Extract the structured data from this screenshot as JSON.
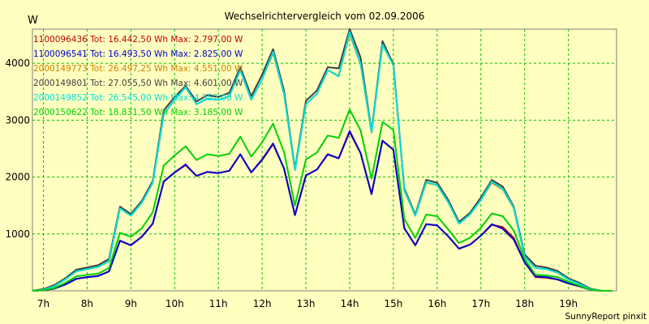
{
  "chart_data": {
    "type": "line",
    "title": "Wechselrichtervergleich vom 02.09.2006",
    "ylabel": "W",
    "xlabel": "",
    "credit": "SunnyReport pinxit",
    "ylim": [
      0,
      4600
    ],
    "xlim": [
      6.75,
      20.1
    ],
    "grid": true,
    "legend_position": "top-left",
    "y_ticks": [
      1000,
      2000,
      3000,
      4000
    ],
    "y_tick_labels": [
      "1000",
      "2000",
      "3000",
      "4000"
    ],
    "x_ticks": [
      7,
      8,
      9,
      10,
      11,
      12,
      13,
      14,
      15,
      16,
      17,
      18,
      19
    ],
    "x_tick_labels": [
      "7h",
      "8h",
      "9h",
      "10h",
      "11h",
      "12h",
      "13h",
      "14h",
      "15h",
      "16h",
      "17h",
      "18h",
      "19h"
    ],
    "x": [
      6.75,
      7.0,
      7.25,
      7.5,
      7.75,
      8.0,
      8.25,
      8.5,
      8.75,
      9.0,
      9.25,
      9.5,
      9.75,
      10.0,
      10.25,
      10.5,
      10.75,
      11.0,
      11.25,
      11.5,
      11.75,
      12.0,
      12.25,
      12.5,
      12.75,
      13.0,
      13.25,
      13.5,
      13.75,
      14.0,
      14.25,
      14.5,
      14.75,
      15.0,
      15.25,
      15.5,
      15.75,
      16.0,
      16.25,
      16.5,
      16.75,
      17.0,
      17.25,
      17.5,
      17.75,
      18.0,
      18.25,
      18.5,
      18.75,
      19.0,
      19.25,
      19.5,
      19.75,
      20.0
    ],
    "series": [
      {
        "name": "1100096436",
        "legend": "1100096436 Tot: 16.442,50 Wh Max: 2.797,00 W",
        "color": "#c00000",
        "values": [
          0,
          10,
          40,
          110,
          210,
          240,
          260,
          340,
          880,
          800,
          950,
          1180,
          1920,
          2080,
          2210,
          2020,
          2090,
          2070,
          2110,
          2400,
          2080,
          2300,
          2580,
          2150,
          1330,
          2030,
          2130,
          2400,
          2330,
          2790,
          2420,
          1700,
          2640,
          2480,
          1100,
          800,
          1170,
          1150,
          960,
          740,
          810,
          970,
          1160,
          1120,
          930,
          500,
          240,
          230,
          200,
          130,
          80,
          20,
          0,
          0
        ]
      },
      {
        "name": "1100096541",
        "legend": "1100096541 Tot: 16.493,50 Wh Max: 2.825,00 W",
        "color": "#0000d0",
        "values": [
          0,
          10,
          40,
          110,
          210,
          240,
          260,
          340,
          880,
          800,
          950,
          1180,
          1920,
          2080,
          2220,
          2020,
          2090,
          2070,
          2110,
          2400,
          2080,
          2310,
          2590,
          2150,
          1330,
          2030,
          2130,
          2400,
          2330,
          2810,
          2420,
          1700,
          2640,
          2480,
          1100,
          800,
          1170,
          1150,
          960,
          740,
          810,
          970,
          1170,
          1090,
          900,
          500,
          250,
          240,
          200,
          130,
          80,
          20,
          0,
          0
        ]
      },
      {
        "name": "2000149773",
        "legend": "2000149773 Tot: 26.497,25 Wh Max: 4.551,00 W",
        "color": "#d08000",
        "values": [
          0,
          20,
          80,
          200,
          340,
          380,
          420,
          520,
          1450,
          1320,
          1550,
          1900,
          3100,
          3360,
          3580,
          3280,
          3380,
          3360,
          3420,
          3880,
          3360,
          3720,
          4180,
          3460,
          2120,
          3280,
          3460,
          3880,
          3780,
          4520,
          3980,
          2780,
          4320,
          4000,
          1760,
          1320,
          1900,
          1860,
          1560,
          1180,
          1340,
          1600,
          1900,
          1780,
          1450,
          600,
          400,
          380,
          320,
          200,
          120,
          30,
          0,
          0
        ]
      },
      {
        "name": "2000149801",
        "legend": "2000149801 Tot: 27.055,50 Wh Max: 4.601,00 W",
        "color": "#404040",
        "values": [
          0,
          30,
          100,
          220,
          370,
          410,
          450,
          560,
          1480,
          1350,
          1580,
          1930,
          3170,
          3410,
          3600,
          3330,
          3440,
          3410,
          3480,
          3930,
          3420,
          3800,
          4250,
          3520,
          2140,
          3340,
          3520,
          3930,
          3910,
          4601,
          4100,
          2810,
          4390,
          3980,
          1800,
          1340,
          1950,
          1900,
          1600,
          1210,
          1370,
          1640,
          1950,
          1830,
          1480,
          640,
          440,
          410,
          350,
          220,
          140,
          40,
          0,
          0
        ]
      },
      {
        "name": "2000149852",
        "legend": "2000149852 Tot: 26.545,00 Wh Max: 4.552,00 W",
        "color": "#00e0e0",
        "values": [
          0,
          20,
          80,
          200,
          340,
          380,
          420,
          520,
          1450,
          1320,
          1550,
          1900,
          3100,
          3360,
          3580,
          3280,
          3380,
          3360,
          3420,
          3880,
          3360,
          3720,
          4200,
          3460,
          2120,
          3280,
          3460,
          3880,
          3770,
          4550,
          3990,
          2790,
          4330,
          3960,
          1770,
          1320,
          1910,
          1860,
          1560,
          1180,
          1340,
          1600,
          1920,
          1790,
          1460,
          600,
          400,
          380,
          320,
          200,
          120,
          30,
          0,
          0
        ]
      },
      {
        "name": "2000150622",
        "legend": "2000150622 Tot: 18.831,50 Wh Max: 3.185,00 W",
        "color": "#00d000",
        "values": [
          0,
          10,
          50,
          140,
          250,
          280,
          300,
          400,
          1020,
          950,
          1100,
          1380,
          2200,
          2380,
          2540,
          2300,
          2400,
          2370,
          2410,
          2710,
          2360,
          2610,
          2940,
          2440,
          1500,
          2310,
          2430,
          2730,
          2690,
          3185,
          2820,
          1970,
          2970,
          2830,
          1260,
          930,
          1340,
          1310,
          1080,
          840,
          930,
          1110,
          1360,
          1310,
          1060,
          560,
          280,
          270,
          240,
          160,
          90,
          20,
          0,
          0
        ]
      }
    ]
  }
}
